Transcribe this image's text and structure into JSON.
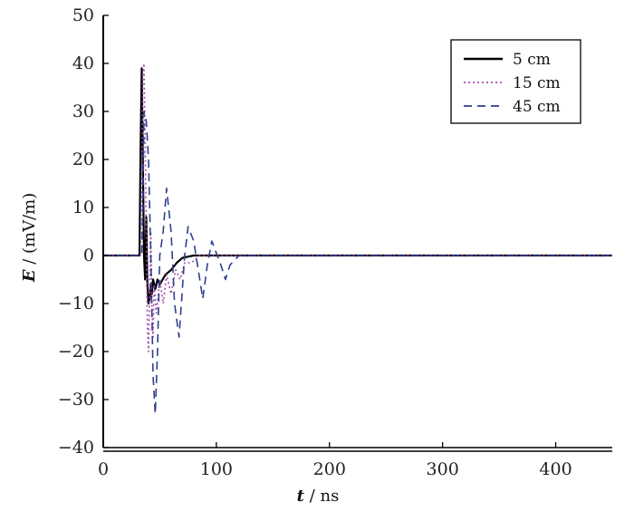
{
  "chart_data": {
    "type": "line",
    "xlabel": {
      "var": "t",
      "unit": " / ns"
    },
    "ylabel": {
      "var": "E",
      "unit": " / (mV/m)"
    },
    "xlim": [
      0,
      450
    ],
    "ylim": [
      -40,
      50
    ],
    "x_ticks": [
      0,
      100,
      200,
      300,
      400
    ],
    "y_ticks": [
      -40,
      -30,
      -20,
      -10,
      0,
      10,
      20,
      30,
      40,
      50
    ],
    "x_tick_labels": [
      "0",
      "100",
      "200",
      "300",
      "400"
    ],
    "y_tick_labels": [
      "−40",
      "−30",
      "−20",
      "−10",
      "0",
      "10",
      "20",
      "30",
      "40",
      "50"
    ],
    "grid": false,
    "legend_position": "top-right",
    "series": [
      {
        "name": "5 cm",
        "color": "#000000",
        "style": "solid",
        "x": [
          0,
          32,
          33,
          34,
          35,
          36,
          37,
          38,
          39,
          40,
          41,
          42,
          43,
          44,
          46,
          48,
          50,
          55,
          60,
          65,
          70,
          80,
          450
        ],
        "y": [
          0,
          0,
          22,
          39,
          20,
          0,
          -5,
          8,
          -6,
          -10,
          -9,
          -6,
          -8,
          -5,
          -7,
          -5,
          -6,
          -4,
          -3,
          -1.5,
          -0.5,
          0,
          0
        ]
      },
      {
        "name": "15 cm",
        "color": "#a74bb0",
        "style": "dotted",
        "x": [
          0,
          33,
          34,
          35,
          36,
          37,
          38,
          39,
          40,
          41,
          42,
          43,
          44,
          45,
          47,
          50,
          53,
          56,
          60,
          64,
          68,
          72,
          78,
          85,
          95,
          450
        ],
        "y": [
          0,
          0,
          15,
          38,
          40,
          25,
          5,
          -15,
          -20,
          -8,
          5,
          -10,
          -17,
          -6,
          -12,
          -5,
          -10,
          -4,
          -8,
          -3,
          -5,
          -1.5,
          -1.5,
          0,
          0,
          0
        ]
      },
      {
        "name": "45 cm",
        "color": "#2e3f8f",
        "style": "dashed",
        "x": [
          0,
          34,
          35,
          36,
          38,
          40,
          42,
          44,
          46,
          48,
          50,
          53,
          56,
          60,
          63,
          67,
          72,
          75,
          80,
          84,
          88,
          92,
          96,
          100,
          104,
          108,
          112,
          116,
          120,
          125,
          450
        ],
        "y": [
          0,
          0,
          10,
          30,
          28,
          20,
          0,
          -25,
          -33,
          -20,
          0,
          5,
          14,
          5,
          -10,
          -17,
          0,
          6,
          3,
          -3,
          -9,
          -2,
          3,
          0.5,
          -2,
          -5,
          -2,
          -1,
          0,
          0,
          0
        ]
      }
    ]
  }
}
